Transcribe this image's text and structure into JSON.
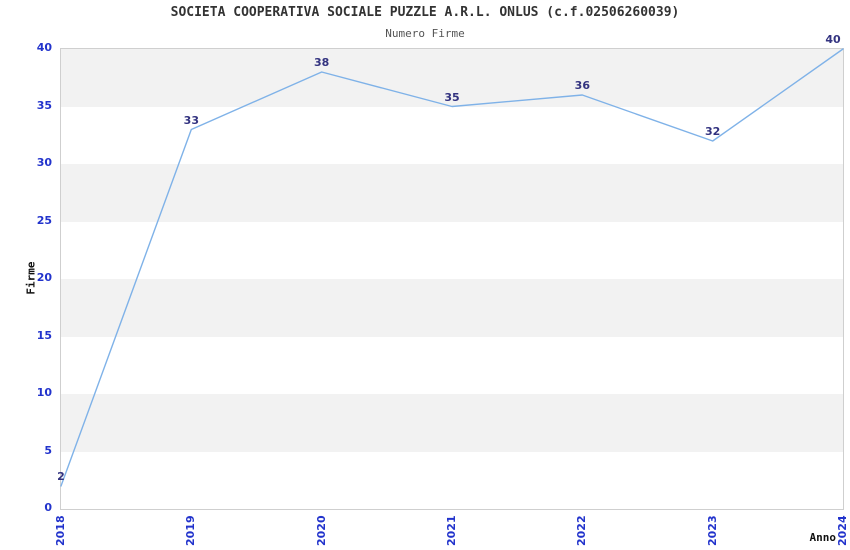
{
  "header": {
    "title": "SOCIETA COOPERATIVA SOCIALE PUZZLE A.R.L. ONLUS (c.f.02506260039)",
    "subtitle": "Numero Firme"
  },
  "chart_data": {
    "type": "line",
    "title": "SOCIETA COOPERATIVA SOCIALE PUZZLE A.R.L. ONLUS (c.f.02506260039)",
    "subtitle": "Numero Firme",
    "x": [
      "2018",
      "2019",
      "2020",
      "2021",
      "2022",
      "2023",
      "2024"
    ],
    "values": [
      2,
      33,
      38,
      35,
      36,
      32,
      40
    ],
    "xlabel": "Anno",
    "ylabel": "Firme",
    "ylim": [
      0,
      40
    ],
    "yticks": [
      0,
      5,
      10,
      15,
      20,
      25,
      30,
      35,
      40
    ],
    "grid": "horizontal-bands-alternating",
    "legend": "none",
    "colors": {
      "line": "#7FB2E8",
      "data_label": "#333380",
      "tick_label": "#2233cc",
      "band": "#f2f2f2",
      "band_alt": "#ffffff",
      "plot_border": "#cfcfcf",
      "title_text": "#333333",
      "subtitle_text": "#555555",
      "axis_title_text": "#111111",
      "background": "#ffffff"
    }
  }
}
